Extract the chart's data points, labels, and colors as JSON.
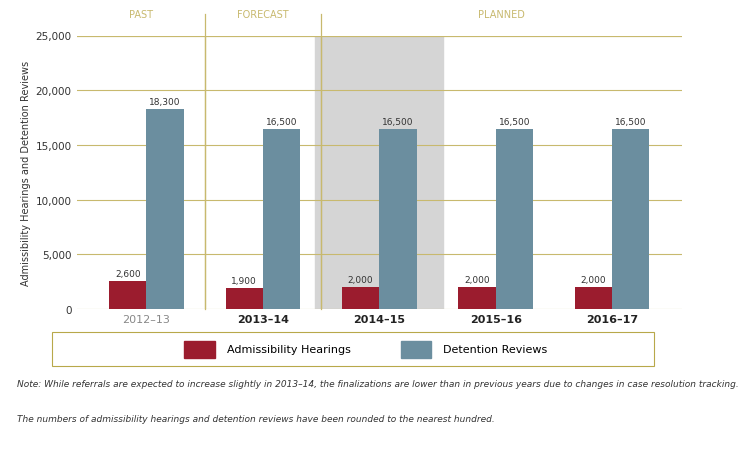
{
  "categories": [
    "2012–13",
    "2013–14",
    "2014–15",
    "2015–16",
    "2016–17"
  ],
  "admissibility": [
    2600,
    1900,
    2000,
    2000,
    2000
  ],
  "detention": [
    18300,
    16500,
    16500,
    16500,
    16500
  ],
  "admissibility_color": "#9B1C2E",
  "detention_color": "#6B8E9F",
  "background_color": "#FFFFFF",
  "plot_bg_color": "#FFFFFF",
  "grid_color": "#C8B96E",
  "forecast_bg_color": "#D5D5D5",
  "section_labels": [
    "PAST",
    "FORECAST",
    "PLANNED"
  ],
  "section_label_color": "#C8B96E",
  "section_line_color": "#C8B96E",
  "ylabel": "Admissibility Hearings and Detention Reviews",
  "ylim": [
    0,
    25000
  ],
  "yticks": [
    0,
    5000,
    10000,
    15000,
    20000,
    25000
  ],
  "legend_labels": [
    "Admissibility Hearings",
    "Detention Reviews"
  ],
  "note_line1": "Note: While referrals are expected to increase slightly in 2013–14, the finalizations are lower than in previous years due to changes in case resolution tracking.",
  "note_line2": "The numbers of admissibility hearings and detention reviews have been rounded to the nearest hundred.",
  "bar_width": 0.32,
  "xlim": [
    -0.6,
    4.6
  ]
}
